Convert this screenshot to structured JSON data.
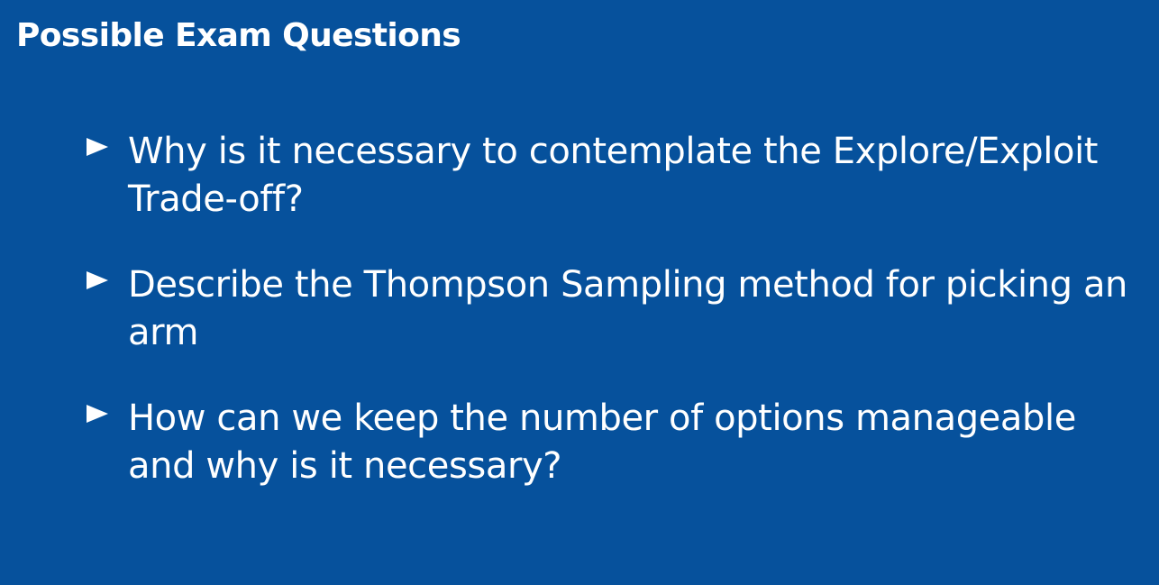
{
  "slide": {
    "title": "Possible Exam Questions",
    "bullets": [
      {
        "text": "Why is it necessary to contemplate the Explore/Exploit Trade-off?"
      },
      {
        "text": "Describe the Thompson Sampling method for picking an arm"
      },
      {
        "text": "How can we keep the number of options manageable and why is it necessary?"
      }
    ],
    "colors": {
      "background": "#06519c",
      "text": "#ffffff"
    }
  }
}
